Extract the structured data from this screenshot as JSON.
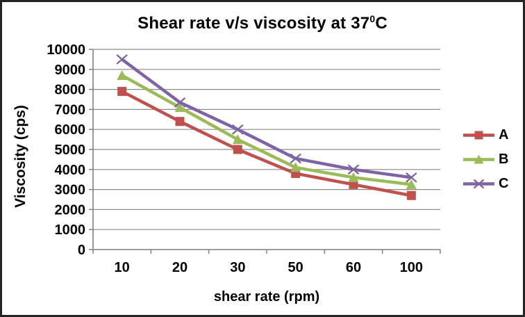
{
  "window": {
    "background": "#ffffff",
    "border_color": "#242424"
  },
  "chart_data": {
    "type": "line",
    "title": {
      "text": "Shear rate v/s viscosity at 37°C (superscript zero)",
      "prefix": "Shear rate v/s viscosity at 37",
      "superscript": "0",
      "suffix": "C"
    },
    "xlabel": "shear rate (rpm)",
    "ylabel": "Viscosity (cps)",
    "categories": [
      "10",
      "20",
      "30",
      "50",
      "60",
      "100"
    ],
    "series": [
      {
        "name": "A",
        "color": "#c0504d",
        "marker": "square",
        "values": [
          7900,
          6400,
          5000,
          3800,
          3250,
          2700
        ]
      },
      {
        "name": "B",
        "color": "#9bbb59",
        "marker": "triangle",
        "values": [
          8700,
          7100,
          5500,
          4100,
          3600,
          3250
        ]
      },
      {
        "name": "C",
        "color": "#8064a2",
        "marker": "x",
        "values": [
          9500,
          7350,
          6000,
          4550,
          4000,
          3600
        ]
      }
    ],
    "ylim": [
      0,
      10000
    ],
    "ytick_step": 1000,
    "yticks": [
      0,
      1000,
      2000,
      3000,
      4000,
      5000,
      6000,
      7000,
      8000,
      9000,
      10000
    ],
    "grid": "horizontal gridlines on",
    "legend_position": "right",
    "legend_entries": [
      "A",
      "B",
      "C"
    ],
    "style": {
      "grid_color": "#8a8a8a",
      "axis_color": "#7f7f7f",
      "text_color": "#000000",
      "plot_background": "#ffffff"
    }
  }
}
